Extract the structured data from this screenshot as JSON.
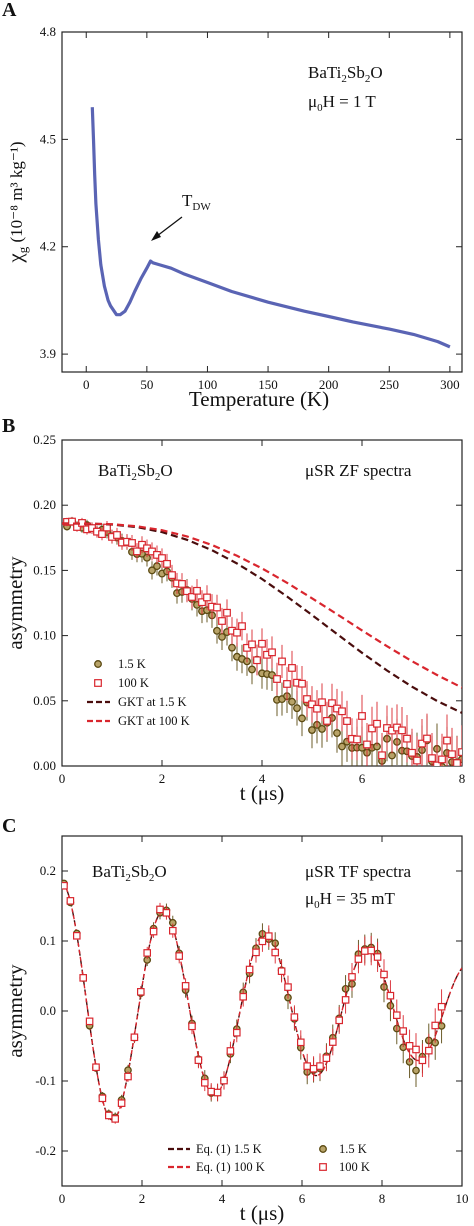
{
  "panels": {
    "A": {
      "letter": "A",
      "ylabel_main": "χ",
      "ylabel_sub": "g",
      "ylabel_rest": " (10⁻⁸ m³ kg⁻¹)",
      "xlabel": "Temperature (K)",
      "compound": {
        "pre": "BaTi",
        "s1": "2",
        "mid": "Sb",
        "s2": "2",
        "post": "O"
      },
      "field": {
        "pre": "μ",
        "sub": "0",
        "post": "H = 1 T"
      },
      "annotation": {
        "main": "T",
        "sub": "DW"
      }
    },
    "B": {
      "letter": "B",
      "ylabel": "asymmetry",
      "xlabel": "t (μs)",
      "compound": {
        "pre": "BaTi",
        "s1": "2",
        "mid": "Sb",
        "s2": "2",
        "post": "O"
      },
      "spectra": "μSR ZF spectra"
    },
    "C": {
      "letter": "C",
      "ylabel": "asymmetry",
      "xlabel": "t (μs)",
      "compound": {
        "pre": "BaTi",
        "s1": "2",
        "mid": "Sb",
        "s2": "2",
        "post": "O"
      },
      "spectra": "μSR TF spectra",
      "field": {
        "pre": "μ",
        "sub": "0",
        "post": "H = 35 mT"
      }
    }
  },
  "colors": {
    "susceptibility": "#5a64b4",
    "k15_edge": "#5b4a12",
    "k15_face": "#b8a368",
    "k100": "#d9262e",
    "fit15": "#4a0d0d",
    "fit100": "#d9262e"
  },
  "chart_data": [
    {
      "type": "line",
      "xlim": [
        -20,
        310
      ],
      "ylim": [
        3.85,
        4.8
      ],
      "xticks": [
        0,
        50,
        100,
        150,
        200,
        250,
        300
      ],
      "yticks": [
        3.9,
        4.2,
        4.5,
        4.8
      ],
      "series": [
        {
          "x": [
            5,
            6,
            7,
            8,
            10,
            12,
            15,
            18,
            20,
            25,
            28,
            32,
            36,
            40,
            45,
            50,
            53,
            55,
            60,
            70,
            80,
            100,
            120,
            150,
            180,
            200,
            220,
            250,
            270,
            290,
            300
          ],
          "y": [
            4.59,
            4.5,
            4.4,
            4.32,
            4.22,
            4.15,
            4.09,
            4.05,
            4.035,
            4.01,
            4.01,
            4.02,
            4.045,
            4.075,
            4.11,
            4.14,
            4.16,
            4.155,
            4.15,
            4.14,
            4.125,
            4.1,
            4.075,
            4.045,
            4.02,
            4.005,
            3.99,
            3.97,
            3.955,
            3.935,
            3.92
          ]
        }
      ]
    },
    {
      "type": "scatter",
      "xlim": [
        0,
        8
      ],
      "ylim": [
        0,
        0.25
      ],
      "xticks": [
        0,
        2,
        4,
        6,
        8
      ],
      "yticks": [
        0.0,
        0.05,
        0.1,
        0.15,
        0.2,
        0.25
      ],
      "legend": [
        "1.5 K",
        "100 K",
        "GKT at 1.5 K",
        "GKT at 100 K"
      ],
      "series": [
        {
          "name": "1.5 K",
          "marker": "circle",
          "decay": 0.237
        },
        {
          "name": "100 K",
          "marker": "square",
          "decay": 0.212
        },
        {
          "name": "GKT at 1.5 K",
          "line": "dashed",
          "x": [
            0,
            0.5,
            1,
            1.5,
            2,
            2.5,
            3,
            3.5,
            4,
            4.5,
            5,
            5.5,
            6,
            6.5,
            7,
            7.5,
            8
          ],
          "y": [
            0.186,
            0.1859,
            0.1852,
            0.1832,
            0.1794,
            0.1735,
            0.1655,
            0.1553,
            0.1434,
            0.13,
            0.1158,
            0.1012,
            0.0868,
            0.0732,
            0.0608,
            0.0499,
            0.0407
          ]
        },
        {
          "name": "GKT at 100 K",
          "line": "dashed",
          "x": [
            0,
            0.5,
            1,
            1.5,
            2,
            2.5,
            3,
            3.5,
            4,
            4.5,
            5,
            5.5,
            6,
            6.5,
            7,
            7.5,
            8
          ],
          "y": [
            0.186,
            0.1859,
            0.1854,
            0.1838,
            0.1808,
            0.1761,
            0.1695,
            0.1612,
            0.1515,
            0.1405,
            0.1286,
            0.1164,
            0.104,
            0.0919,
            0.0804,
            0.0698,
            0.0601
          ]
        }
      ]
    },
    {
      "type": "scatter",
      "xlim": [
        0,
        10
      ],
      "ylim": [
        -0.25,
        0.25
      ],
      "xticks": [
        0,
        2,
        4,
        6,
        8,
        10
      ],
      "yticks": [
        -0.2,
        -0.1,
        0.0,
        0.1,
        0.2
      ],
      "legend": [
        "Eq. (1) 1.5 K",
        "Eq. (1) 100 K",
        "1.5 K",
        "100 K"
      ],
      "series": [
        {
          "name": "Eq. (1) 1.5 K",
          "line": "dashed",
          "amplitude": 0.18,
          "period": 2.55,
          "decay": 0.1
        },
        {
          "name": "Eq. (1) 100 K",
          "line": "dashed",
          "amplitude": 0.18,
          "period": 2.55,
          "decay": 0.1
        },
        {
          "name": "1.5 K",
          "marker": "circle"
        },
        {
          "name": "100 K",
          "marker": "square"
        }
      ]
    }
  ]
}
